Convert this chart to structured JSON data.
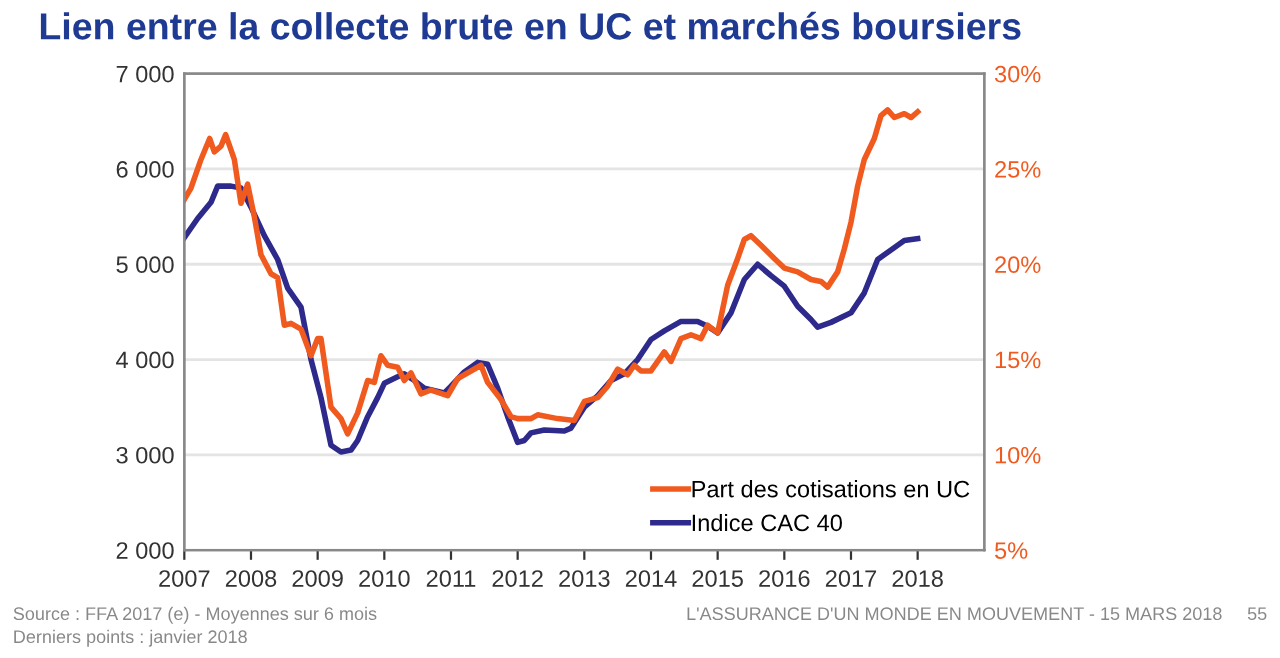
{
  "chart_data": {
    "type": "line",
    "title": "Lien entre la collecte brute en UC et marchés boursiers",
    "xlim": [
      2007,
      2019
    ],
    "xticks": [
      2007,
      2008,
      2009,
      2010,
      2011,
      2012,
      2013,
      2014,
      2015,
      2016,
      2017,
      2018
    ],
    "ylim": [
      2000,
      7000
    ],
    "yticks": [
      {
        "value": 2000,
        "label": "2 000"
      },
      {
        "value": 3000,
        "label": "3 000"
      },
      {
        "value": 4000,
        "label": "4 000"
      },
      {
        "value": 5000,
        "label": "5 000"
      },
      {
        "value": 6000,
        "label": "6 000"
      },
      {
        "value": 7000,
        "label": "7 000"
      }
    ],
    "y2lim": [
      5,
      30
    ],
    "y2ticks": [
      {
        "value": 5,
        "label": "5%"
      },
      {
        "value": 10,
        "label": "10%"
      },
      {
        "value": 15,
        "label": "15%"
      },
      {
        "value": 20,
        "label": "20%"
      },
      {
        "value": 25,
        "label": "25%"
      },
      {
        "value": 30,
        "label": "30%"
      }
    ],
    "grid": "y",
    "legend": "bottom right",
    "line_style": "solid",
    "marker": "none",
    "series": [
      {
        "name": "Part des cotisations en UC",
        "color": "#f05a1e",
        "axis": "y2",
        "x": [
          2007.0,
          2007.1,
          2007.25,
          2007.38,
          2007.45,
          2007.55,
          2007.62,
          2007.75,
          2007.85,
          2007.95,
          2008.05,
          2008.15,
          2008.3,
          2008.4,
          2008.5,
          2008.6,
          2008.75,
          2008.9,
          2009.0,
          2009.05,
          2009.2,
          2009.35,
          2009.45,
          2009.6,
          2009.75,
          2009.85,
          2009.95,
          2010.05,
          2010.2,
          2010.3,
          2010.4,
          2010.55,
          2010.7,
          2010.95,
          2011.1,
          2011.3,
          2011.45,
          2011.55,
          2011.75,
          2011.9,
          2012.0,
          2012.2,
          2012.3,
          2012.6,
          2012.85,
          2013.0,
          2013.2,
          2013.35,
          2013.5,
          2013.65,
          2013.75,
          2013.85,
          2014.0,
          2014.1,
          2014.2,
          2014.3,
          2014.45,
          2014.6,
          2014.75,
          2014.85,
          2015.0,
          2015.15,
          2015.3,
          2015.4,
          2015.5,
          2015.65,
          2015.85,
          2016.0,
          2016.2,
          2016.4,
          2016.55,
          2016.65,
          2016.8,
          2016.9,
          2017.0,
          2017.1,
          2017.2,
          2017.35,
          2017.45,
          2017.55,
          2017.65,
          2017.8,
          2017.9,
          2018.0
        ],
        "values": [
          23.4,
          24.0,
          25.5,
          26.6,
          25.9,
          26.2,
          26.8,
          25.5,
          23.2,
          24.2,
          22.5,
          20.5,
          19.5,
          19.3,
          16.8,
          16.9,
          16.6,
          15.2,
          16.1,
          16.1,
          12.5,
          11.9,
          11.1,
          12.2,
          13.9,
          13.8,
          15.2,
          14.7,
          14.6,
          13.9,
          14.3,
          13.2,
          13.4,
          13.1,
          14.0,
          14.4,
          14.7,
          13.8,
          12.9,
          12.0,
          11.9,
          11.9,
          12.1,
          11.9,
          11.8,
          12.8,
          13.0,
          13.6,
          14.5,
          14.2,
          14.7,
          14.4,
          14.4,
          14.9,
          15.4,
          14.9,
          16.1,
          16.3,
          16.1,
          16.8,
          16.4,
          18.9,
          20.3,
          21.3,
          21.5,
          21.0,
          20.3,
          19.8,
          19.6,
          19.2,
          19.1,
          18.8,
          19.6,
          20.8,
          22.2,
          24.1,
          25.5,
          26.6,
          27.8,
          28.1,
          27.7,
          27.9,
          27.7,
          28.0
        ]
      },
      {
        "name": "Indice CAC 40",
        "color": "#2e2a8c",
        "x": [
          2007.0,
          2007.2,
          2007.4,
          2007.5,
          2007.7,
          2007.85,
          2008.0,
          2008.2,
          2008.4,
          2008.55,
          2008.75,
          2008.9,
          2009.05,
          2009.2,
          2009.35,
          2009.5,
          2009.6,
          2009.75,
          2009.9,
          2010.0,
          2010.2,
          2010.3,
          2010.45,
          2010.6,
          2010.9,
          2011.0,
          2011.2,
          2011.4,
          2011.55,
          2011.7,
          2011.85,
          2012.0,
          2012.1,
          2012.2,
          2012.4,
          2012.7,
          2012.8,
          2013.0,
          2013.2,
          2013.4,
          2013.6,
          2013.8,
          2014.0,
          2014.2,
          2014.45,
          2014.7,
          2014.85,
          2015.0,
          2015.2,
          2015.4,
          2015.6,
          2015.8,
          2016.0,
          2016.2,
          2016.4,
          2016.5,
          2016.7,
          2017.0,
          2017.2,
          2017.4,
          2017.6,
          2017.8,
          2018.0
        ],
        "values": [
          5280,
          5480,
          5650,
          5820,
          5820,
          5800,
          5600,
          5300,
          5050,
          4750,
          4550,
          4000,
          3600,
          3100,
          3030,
          3050,
          3150,
          3400,
          3600,
          3750,
          3820,
          3850,
          3780,
          3700,
          3650,
          3720,
          3870,
          3970,
          3950,
          3700,
          3400,
          3130,
          3150,
          3230,
          3260,
          3250,
          3280,
          3500,
          3620,
          3780,
          3850,
          4000,
          4210,
          4300,
          4400,
          4400,
          4350,
          4280,
          4490,
          4840,
          5000,
          4880,
          4770,
          4560,
          4420,
          4340,
          4390,
          4490,
          4700,
          5050,
          5150,
          5250,
          5270
        ]
      }
    ],
    "annotations": [
      "Source : FFA 2017 (e) - Moyennes sur 6 mois",
      "Derniers points : janvier 2018",
      "L'ASSURANCE D'UN MONDE EN MOUVEMENT - 15 MARS 2018",
      "55"
    ]
  }
}
